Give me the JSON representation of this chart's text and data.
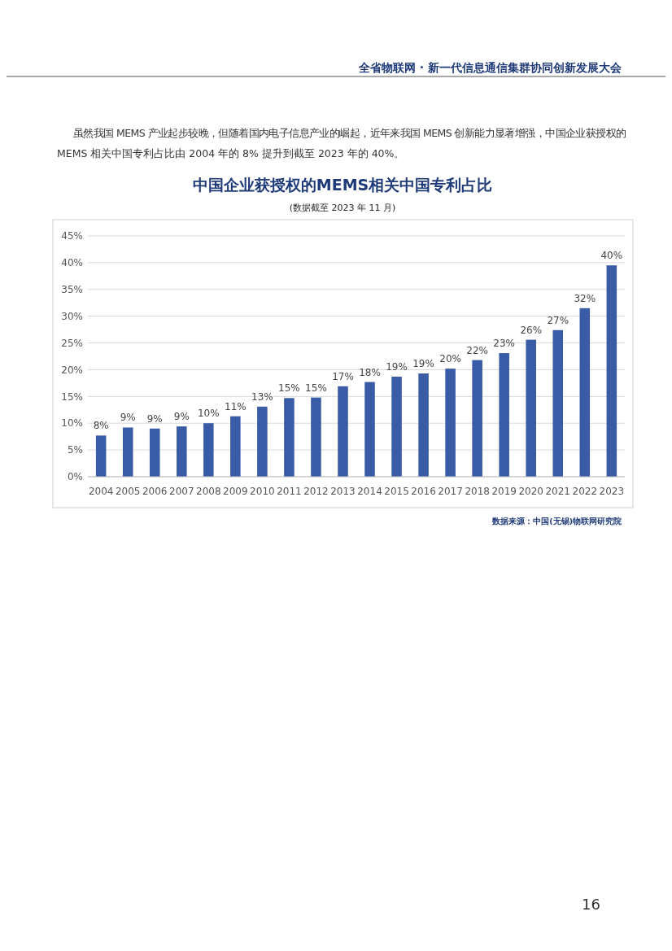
{
  "chart_data": {
    "type": "bar",
    "title": "中国企业获授权的MEMS相关中国专利占比",
    "subtitle": "(数据截至 2023 年 11 月)",
    "annotations": [
      "全省物联网 · 新一代信息通信集群协同创新发展大会",
      "虽然我国 MEMS 产业起步较晚，但随着国内电子信息产业的崛起，近年来我国 MEMS 创新能力显著增强，中国企业获授权的",
      "MEMS 相关中国专利占比由 2004 年的 8% 提升到截至 2023 年的 40%。",
      "数据来源：中国(无锡)物联网研究院",
      "16"
    ],
    "categories": [
      "2004",
      "2005",
      "2006",
      "2007",
      "2008",
      "2009",
      "2010",
      "2011",
      "2012",
      "2013",
      "2014",
      "2015",
      "2016",
      "2017",
      "2018",
      "2019",
      "2020",
      "2021",
      "2022",
      "2023"
    ],
    "values": [
      7.7,
      9.2,
      9.0,
      9.4,
      10.0,
      11.3,
      13.1,
      14.7,
      14.8,
      16.9,
      17.7,
      18.7,
      19.3,
      20.2,
      21.8,
      23.1,
      25.6,
      27.4,
      31.5,
      39.5
    ],
    "value_labels": [
      "8%",
      "9%",
      "9%",
      "9%",
      "10%",
      "11%",
      "13%",
      "15%",
      "15%",
      "17%",
      "18%",
      "19%",
      "19%",
      "20%",
      "22%",
      "23%",
      "26%",
      "27%",
      "32%",
      "40%"
    ],
    "color": "#3a5ba6",
    "ylim": [
      0,
      45
    ],
    "yticks": [
      {
        "value": 0,
        "label": "0%"
      },
      {
        "value": 5,
        "label": "5%"
      },
      {
        "value": 10,
        "label": "10%"
      },
      {
        "value": 15,
        "label": "15%"
      },
      {
        "value": 20,
        "label": "20%"
      },
      {
        "value": 25,
        "label": "25%"
      },
      {
        "value": 30,
        "label": "30%"
      },
      {
        "value": 35,
        "label": "35%"
      },
      {
        "value": 40,
        "label": "40%"
      },
      {
        "value": 45,
        "label": "45%"
      }
    ],
    "grid": "y"
  }
}
